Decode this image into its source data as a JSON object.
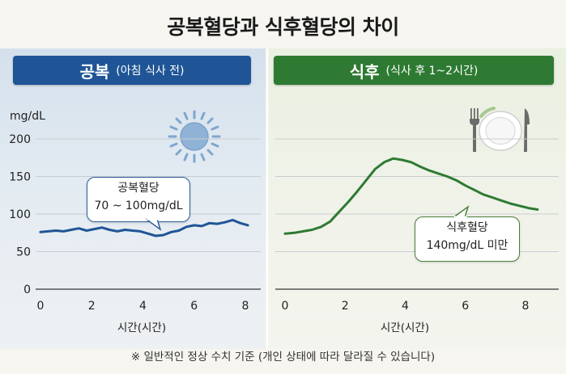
{
  "title": "공복혈당과 식후혈당의 차이",
  "left_panel": {
    "label_main": "공복",
    "label_sub": "(아침 식사 전)"
  },
  "right_panel": {
    "label_main": "식후",
    "label_sub": "(식사 후 1~2시간)"
  },
  "left_bubble": {
    "line1": "공복혈당",
    "line2": "70 ~ 100mg/dL"
  },
  "right_bubble": {
    "line1": "식후혈당",
    "line2": "140mg/dL 미만"
  },
  "footnote": "※ 일반적인 정상 수치 기준 (개인 상태에 따라 달라질 수 있습니다)",
  "colors": {
    "fasting": "#1f5596",
    "postmeal": "#2e7a33",
    "grid": "#c9ccd0"
  },
  "icons": {
    "left": "sun-icon",
    "right": "plate-fork-knife-icon"
  },
  "chart_data": [
    {
      "type": "line",
      "title": "공복",
      "xlabel": "시간(시간)",
      "ylabel": "mg/dL",
      "xlim": [
        0,
        8
      ],
      "ylim": [
        0,
        200
      ],
      "xticks": [
        0,
        2,
        4,
        6,
        8
      ],
      "yticks": [
        0,
        50,
        100,
        150,
        200
      ],
      "grid": true,
      "series": [
        {
          "x": [
            0,
            0.3,
            0.6,
            0.9,
            1.2,
            1.5,
            1.8,
            2.1,
            2.4,
            2.7,
            3.0,
            3.3,
            3.6,
            3.9,
            4.2,
            4.5,
            4.8,
            5.1,
            5.4,
            5.7,
            6.0,
            6.3,
            6.6,
            6.9,
            7.2,
            7.5,
            7.8,
            8.1
          ],
          "values": [
            76,
            77,
            78,
            77,
            79,
            81,
            78,
            80,
            82,
            79,
            77,
            79,
            78,
            77,
            74,
            71,
            72,
            76,
            78,
            83,
            85,
            84,
            88,
            87,
            89,
            92,
            88,
            85
          ]
        }
      ]
    },
    {
      "type": "line",
      "title": "식후",
      "xlabel": "시간(시간)",
      "ylabel": "",
      "xlim": [
        0,
        8
      ],
      "ylim": [
        0,
        200
      ],
      "xticks": [
        0,
        2,
        4,
        6,
        8
      ],
      "yticks": [],
      "grid": true,
      "series": [
        {
          "x": [
            0,
            0.3,
            0.6,
            0.9,
            1.2,
            1.5,
            1.8,
            2.1,
            2.4,
            2.7,
            3.0,
            3.3,
            3.6,
            3.9,
            4.2,
            4.5,
            4.8,
            5.1,
            5.4,
            5.7,
            6.0,
            6.3,
            6.6,
            6.9,
            7.2,
            7.5,
            7.8,
            8.1,
            8.4
          ],
          "values": [
            74,
            75,
            77,
            79,
            83,
            90,
            103,
            116,
            130,
            145,
            160,
            169,
            174,
            172,
            169,
            163,
            158,
            154,
            150,
            145,
            138,
            132,
            126,
            122,
            118,
            114,
            111,
            108,
            106
          ]
        }
      ]
    }
  ]
}
